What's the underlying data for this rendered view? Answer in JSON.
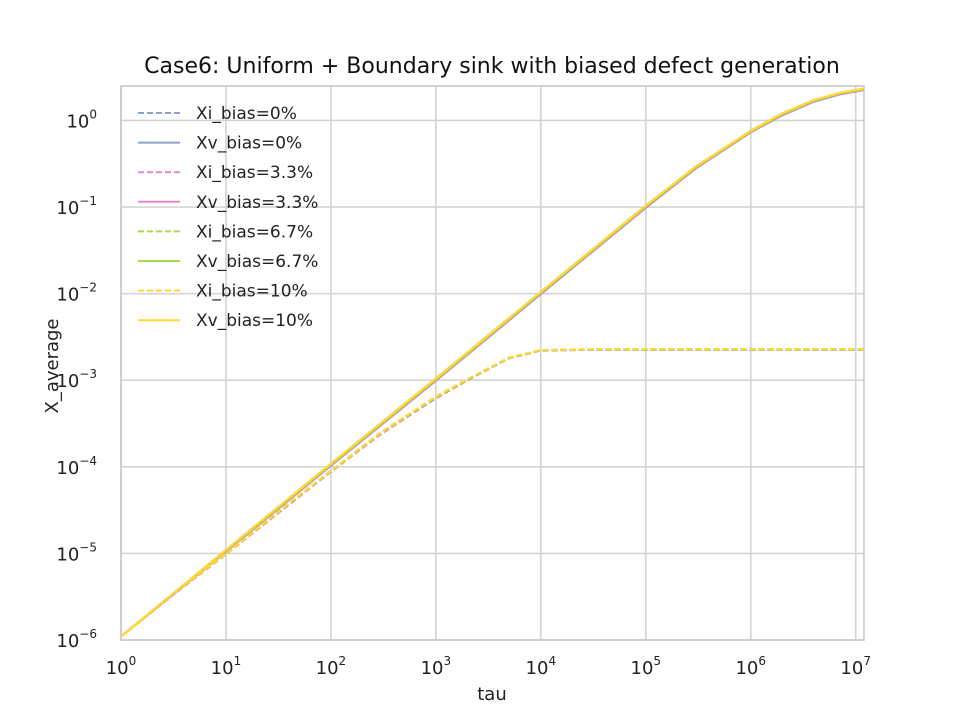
{
  "chart_data": {
    "type": "line",
    "title": "Case6: Uniform + Boundary sink with biased defect generation",
    "xlabel": "tau",
    "ylabel": "X_average",
    "xscale": "log",
    "yscale": "log",
    "xlim": [
      1,
      12000000
    ],
    "ylim": [
      1e-06,
      2.5
    ],
    "xticks": [
      {
        "base": "10",
        "exp": "0"
      },
      {
        "base": "10",
        "exp": "1"
      },
      {
        "base": "10",
        "exp": "2"
      },
      {
        "base": "10",
        "exp": "3"
      },
      {
        "base": "10",
        "exp": "4"
      },
      {
        "base": "10",
        "exp": "5"
      },
      {
        "base": "10",
        "exp": "6"
      },
      {
        "base": "10",
        "exp": "7"
      }
    ],
    "yticks": [
      {
        "base": "10",
        "exp": "−6"
      },
      {
        "base": "10",
        "exp": "−5"
      },
      {
        "base": "10",
        "exp": "−4"
      },
      {
        "base": "10",
        "exp": "−3"
      },
      {
        "base": "10",
        "exp": "−2"
      },
      {
        "base": "10",
        "exp": "−1"
      },
      {
        "base": "10",
        "exp": "0"
      }
    ],
    "grid": true,
    "legend_position": "upper-left",
    "series": [
      {
        "name": "Xi_bias=0%",
        "style": "dashed",
        "color": "#8da0cb",
        "x": [
          1,
          3,
          10,
          30,
          100,
          300,
          1000,
          2000,
          3000,
          5000,
          10000,
          30000,
          100000,
          1000000,
          12000000
        ],
        "y": [
          1.1e-06,
          3.2e-06,
          9.8e-06,
          2.8e-05,
          8.8e-05,
          0.00024,
          0.00062,
          0.001,
          0.0013,
          0.0018,
          0.0022,
          0.00225,
          0.00225,
          0.00225,
          0.00225
        ]
      },
      {
        "name": "Xv_bias=0%",
        "style": "solid",
        "color": "#8da0cb",
        "x": [
          1,
          10,
          100,
          1000,
          10000,
          100000,
          300000,
          1000000,
          2000000,
          4000000,
          7000000,
          12000000
        ],
        "y": [
          1.1e-06,
          1.05e-05,
          0.000103,
          0.00099,
          0.0099,
          0.098,
          0.28,
          0.73,
          1.15,
          1.65,
          2.0,
          2.25
        ]
      },
      {
        "name": "Xi_bias=3.3%",
        "style": "dashed",
        "color": "#e78ac3",
        "x": [
          1,
          3,
          10,
          30,
          100,
          300,
          1000,
          2000,
          3000,
          5000,
          10000,
          30000,
          100000,
          1000000,
          12000000
        ],
        "y": [
          1.1e-06,
          3.2e-06,
          9.9e-06,
          2.8e-05,
          8.9e-05,
          0.00024,
          0.00063,
          0.00101,
          0.00131,
          0.00181,
          0.00221,
          0.00226,
          0.00226,
          0.00226,
          0.00226
        ]
      },
      {
        "name": "Xv_bias=3.3%",
        "style": "solid",
        "color": "#e78ac3",
        "x": [
          1,
          10,
          100,
          1000,
          10000,
          100000,
          300000,
          1000000,
          2000000,
          4000000,
          7000000,
          12000000
        ],
        "y": [
          1.1e-06,
          1.07e-05,
          0.000105,
          0.00101,
          0.0101,
          0.1,
          0.285,
          0.74,
          1.17,
          1.68,
          2.03,
          2.28
        ]
      },
      {
        "name": "Xi_bias=6.7%",
        "style": "dashed",
        "color": "#a6d854",
        "x": [
          1,
          3,
          10,
          30,
          100,
          300,
          1000,
          2000,
          3000,
          5000,
          10000,
          30000,
          100000,
          1000000,
          12000000
        ],
        "y": [
          1.1e-06,
          3.3e-06,
          9.9e-06,
          2.9e-05,
          9e-05,
          0.00025,
          0.00064,
          0.00102,
          0.00132,
          0.00182,
          0.00222,
          0.00227,
          0.00227,
          0.00227,
          0.00227
        ]
      },
      {
        "name": "Xv_bias=6.7%",
        "style": "solid",
        "color": "#a6d854",
        "x": [
          1,
          10,
          100,
          1000,
          10000,
          100000,
          300000,
          1000000,
          2000000,
          4000000,
          7000000,
          12000000
        ],
        "y": [
          1.1e-06,
          1.09e-05,
          0.000107,
          0.00103,
          0.0103,
          0.102,
          0.29,
          0.75,
          1.19,
          1.7,
          2.06,
          2.31
        ]
      },
      {
        "name": "Xi_bias=10%",
        "style": "dashed",
        "color": "#ffd92f",
        "x": [
          1,
          3,
          10,
          30,
          100,
          300,
          1000,
          2000,
          3000,
          5000,
          10000,
          30000,
          100000,
          1000000,
          12000000
        ],
        "y": [
          1.1e-06,
          3.3e-06,
          9.9e-06,
          2.9e-05,
          9e-05,
          0.00025,
          0.00065,
          0.00103,
          0.00133,
          0.00183,
          0.00223,
          0.00228,
          0.00228,
          0.00228,
          0.00228
        ]
      },
      {
        "name": "Xv_bias=10%",
        "style": "solid",
        "color": "#ffd92f",
        "x": [
          1,
          10,
          100,
          1000,
          10000,
          100000,
          300000,
          1000000,
          2000000,
          4000000,
          7000000,
          12000000
        ],
        "y": [
          1.1e-06,
          1.1e-05,
          0.000109,
          0.00105,
          0.0105,
          0.104,
          0.295,
          0.76,
          1.21,
          1.72,
          2.08,
          2.34
        ]
      }
    ]
  }
}
